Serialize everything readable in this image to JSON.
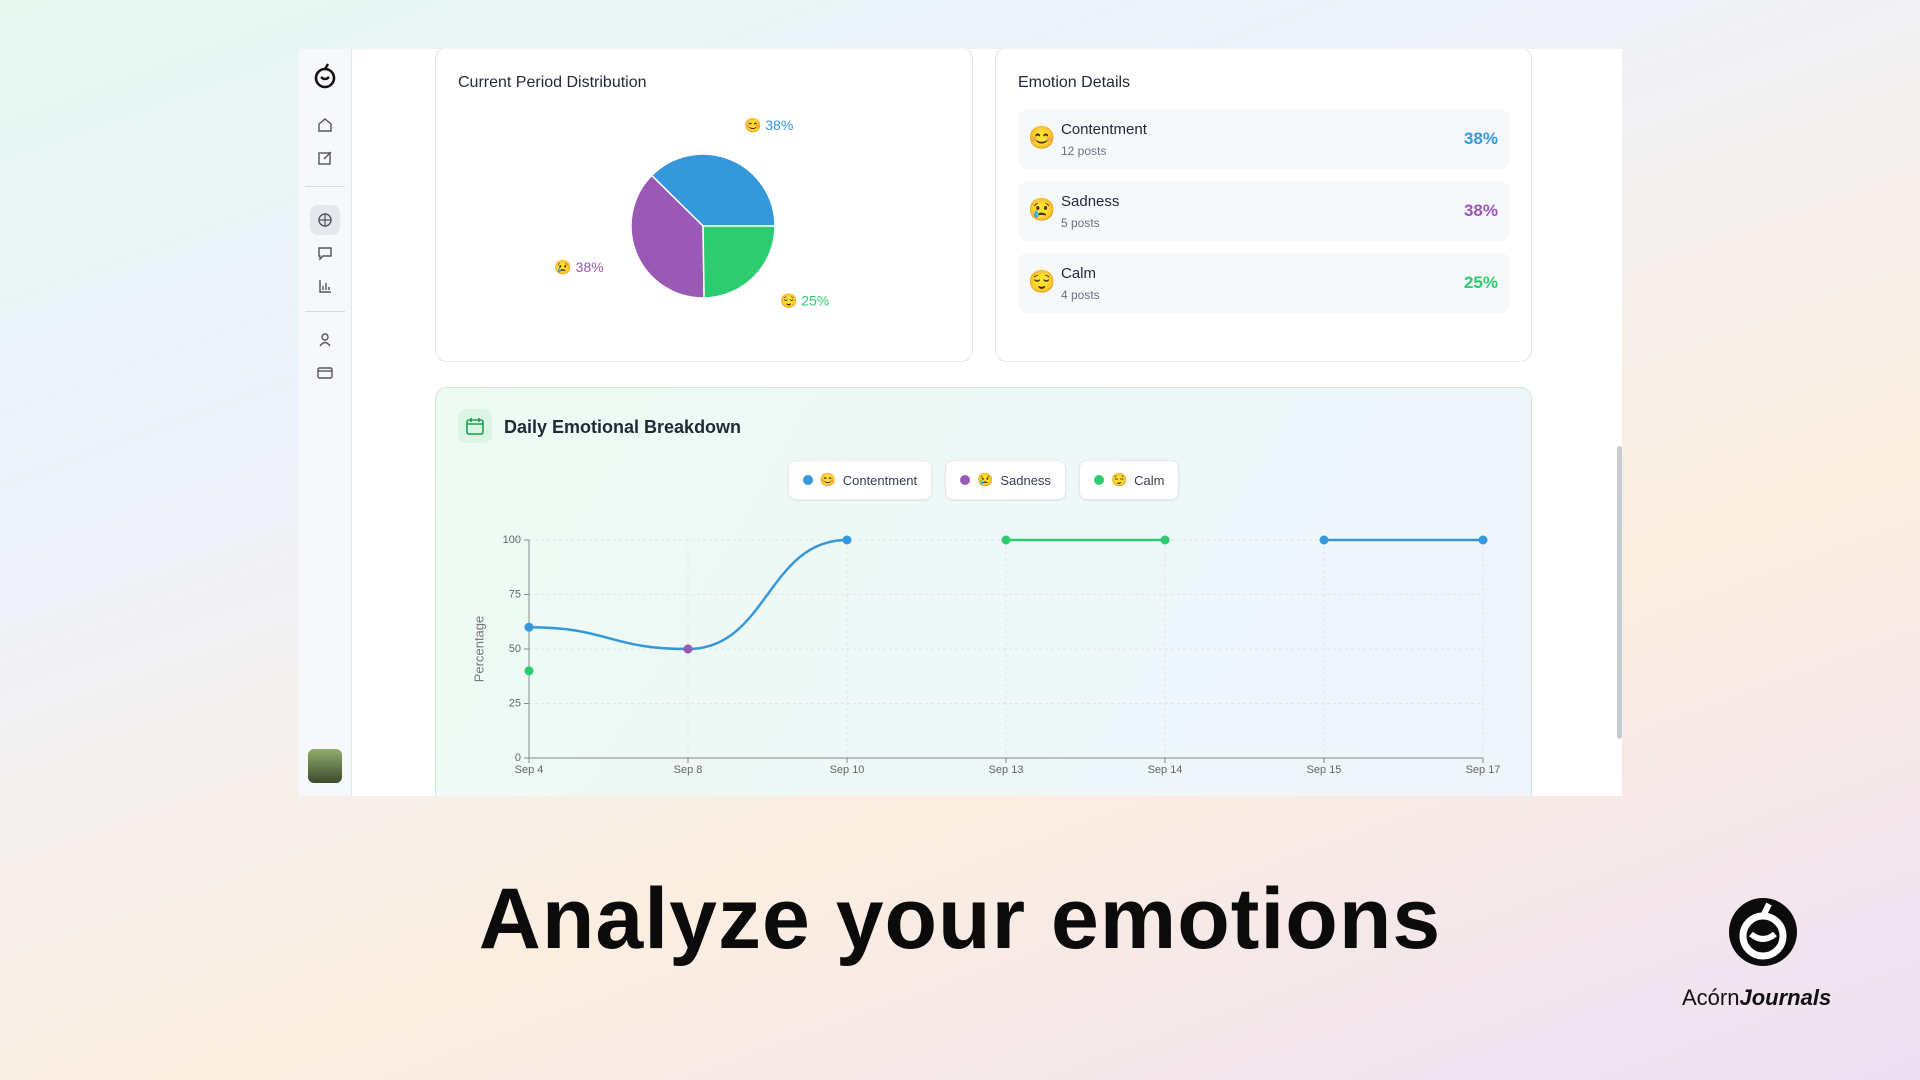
{
  "chart_data": [
    {
      "type": "pie",
      "title": "Current Period Distribution",
      "categories": [
        "Contentment",
        "Sadness",
        "Calm"
      ],
      "values": [
        38,
        38,
        25
      ],
      "value_labels": [
        "😊 38%",
        "😢 38%",
        "😌 25%"
      ],
      "colors": [
        "#3498db",
        "#9b59b6",
        "#2ecc71"
      ]
    },
    {
      "type": "line",
      "title": "Daily Emotional Breakdown",
      "y_label": "Percentage",
      "categories": [
        "Sep 4",
        "Sep 8",
        "Sep 10",
        "Sep 13",
        "Sep 14",
        "Sep 15",
        "Sep 17"
      ],
      "series": [
        {
          "name": "Contentment",
          "emoji": "😊",
          "color": "#3498db",
          "values": [
            60,
            50,
            100,
            null,
            null,
            100,
            100
          ]
        },
        {
          "name": "Sadness",
          "emoji": "😢",
          "color": "#9b59b6",
          "values": [
            null,
            50,
            null,
            null,
            null,
            null,
            null
          ]
        },
        {
          "name": "Calm",
          "emoji": "😌",
          "color": "#2ecc71",
          "values": [
            40,
            null,
            null,
            100,
            100,
            null,
            null
          ]
        }
      ],
      "ylim": [
        0,
        100
      ],
      "yticks": [
        0,
        25,
        50,
        75,
        100
      ],
      "grid": true
    }
  ],
  "emotion_details": {
    "title": "Emotion Details",
    "rows": [
      {
        "emoji": "😊",
        "name": "Contentment",
        "posts": "12 posts",
        "percent": "38%",
        "color": "#3498db"
      },
      {
        "emoji": "😢",
        "name": "Sadness",
        "posts": "5 posts",
        "percent": "38%",
        "color": "#9b59b6"
      },
      {
        "emoji": "😌",
        "name": "Calm",
        "posts": "4 posts",
        "percent": "25%",
        "color": "#2ecc71"
      }
    ]
  },
  "headline": "Analyze your emotions",
  "brand": {
    "first": "Acórn",
    "second": "Journals"
  }
}
